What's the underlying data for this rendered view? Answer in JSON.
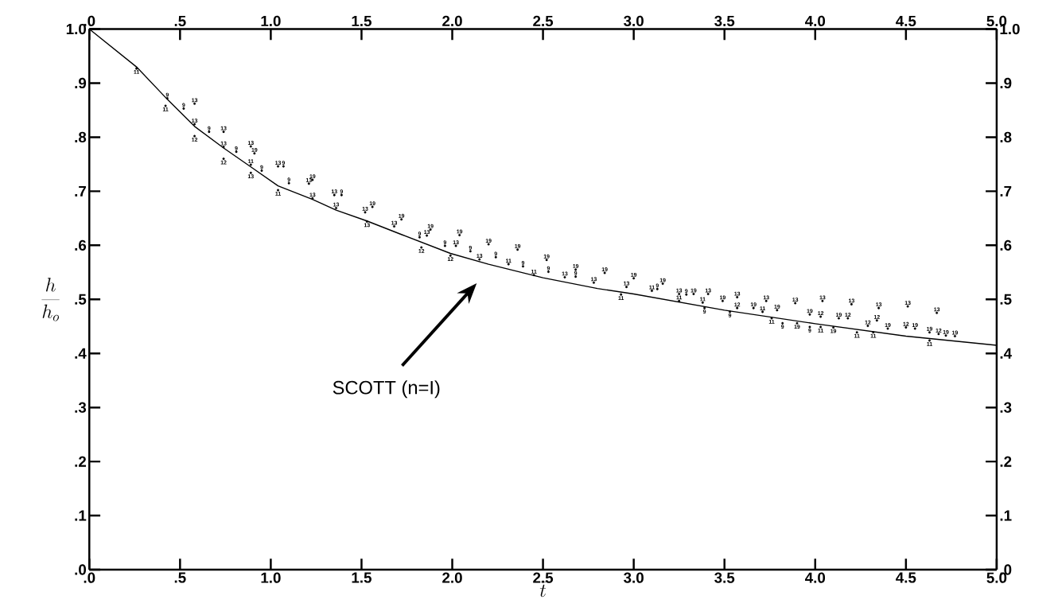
{
  "chart_data": {
    "type": "scatter",
    "xlabel": "\\bar{t}",
    "ylabel": "\\frac{h}{h_o}",
    "xlim": [
      0,
      5
    ],
    "ylim": [
      0,
      1
    ],
    "xticks": [
      {
        "value": 0,
        "label": ".0"
      },
      {
        "value": 0.5,
        "label": ".5"
      },
      {
        "value": 1,
        "label": "1.0"
      },
      {
        "value": 1.5,
        "label": "1.5"
      },
      {
        "value": 2,
        "label": "2.0"
      },
      {
        "value": 2.5,
        "label": "2.5"
      },
      {
        "value": 3,
        "label": "3.0"
      },
      {
        "value": 3.5,
        "label": "3.5"
      },
      {
        "value": 4,
        "label": "4.0"
      },
      {
        "value": 4.5,
        "label": "4.5"
      },
      {
        "value": 5,
        "label": "5.0"
      }
    ],
    "x2lim": [
      0,
      5
    ],
    "x2ticks": [
      {
        "value": 0,
        "label": ".0"
      },
      {
        "value": 0.5,
        "label": ".5"
      },
      {
        "value": 1,
        "label": "1.0"
      },
      {
        "value": 1.5,
        "label": "1.5"
      },
      {
        "value": 2,
        "label": "2.0"
      },
      {
        "value": 2.5,
        "label": "2.5"
      },
      {
        "value": 3,
        "label": "3.0"
      },
      {
        "value": 3.5,
        "label": "3.5"
      },
      {
        "value": 4,
        "label": "4.0"
      },
      {
        "value": 4.5,
        "label": "4.5"
      },
      {
        "value": 5,
        "label": "5.0"
      }
    ],
    "yticks": [
      {
        "value": 0,
        "label": ".0"
      },
      {
        "value": 0.1,
        "label": ".1"
      },
      {
        "value": 0.2,
        "label": ".2"
      },
      {
        "value": 0.3,
        "label": ".3"
      },
      {
        "value": 0.4,
        "label": ".4"
      },
      {
        "value": 0.5,
        "label": ".5"
      },
      {
        "value": 0.6,
        "label": ".6"
      },
      {
        "value": 0.7,
        "label": ".7"
      },
      {
        "value": 0.8,
        "label": ".8"
      },
      {
        "value": 0.9,
        "label": ".9"
      },
      {
        "value": 1,
        "label": "1.0"
      }
    ],
    "y2lim": [
      0,
      1
    ],
    "y2ticks": [
      {
        "value": 0,
        "label": ".0"
      },
      {
        "value": 0.1,
        "label": ".1"
      },
      {
        "value": 0.2,
        "label": ".2"
      },
      {
        "value": 0.3,
        "label": ".3"
      },
      {
        "value": 0.4,
        "label": ".4"
      },
      {
        "value": 0.5,
        "label": ".5"
      },
      {
        "value": 0.6,
        "label": ".6"
      },
      {
        "value": 0.7,
        "label": ".7"
      },
      {
        "value": 0.8,
        "label": ".8"
      },
      {
        "value": 0.9,
        "label": ".9"
      },
      {
        "value": 1,
        "label": "1.0"
      }
    ],
    "annotations": [
      "SCOTT (n=I)"
    ],
    "series": [
      {
        "type": "line",
        "color": "#000000",
        "x": [
          0,
          0.26,
          0.43,
          0.58,
          0.74,
          0.89,
          1.04,
          1.23,
          1.36,
          1.53,
          1.72,
          1.99,
          2.2,
          2.5,
          2.8,
          3.0,
          3.25,
          3.5,
          4.0,
          4.5,
          5.0
        ],
        "values": [
          1.0,
          0.93,
          0.87,
          0.82,
          0.78,
          0.745,
          0.71,
          0.685,
          0.665,
          0.645,
          0.62,
          0.585,
          0.565,
          0.54,
          0.52,
          0.51,
          0.495,
          0.48,
          0.455,
          0.432,
          0.415
        ]
      },
      {
        "name": "9",
        "color": "#000000",
        "x": [
          0.43,
          0.52,
          0.66,
          0.81,
          0.95,
          1.07,
          1.1,
          1.39,
          1.82,
          1.96,
          2.1,
          2.24,
          2.39,
          2.53,
          2.68,
          3.13,
          3.29,
          3.39,
          3.53,
          3.82,
          3.97
        ],
        "values": [
          0.872,
          0.853,
          0.81,
          0.773,
          0.738,
          0.746,
          0.715,
          0.693,
          0.615,
          0.599,
          0.589,
          0.578,
          0.561,
          0.551,
          0.542,
          0.519,
          0.509,
          0.484,
          0.477,
          0.456,
          0.449
        ]
      },
      {
        "name": "11",
        "color": "#000000",
        "x": [
          0.26,
          0.42,
          0.89,
          1.04,
          2.31,
          2.45,
          2.93,
          3.1,
          3.25,
          3.38,
          3.71,
          3.76,
          4.03,
          4.23,
          4.32,
          4.63
        ],
        "values": [
          0.927,
          0.858,
          0.749,
          0.702,
          0.565,
          0.545,
          0.509,
          0.516,
          0.497,
          0.494,
          0.477,
          0.465,
          0.449,
          0.439,
          0.439,
          0.424
        ]
      },
      {
        "name": "12",
        "color": "#000000",
        "x": [
          0.58,
          0.74,
          1.83,
          1.99,
          3.57,
          4.03,
          4.18,
          4.29,
          4.34,
          4.5,
          4.68
        ],
        "values": [
          0.802,
          0.76,
          0.596,
          0.581,
          0.484,
          0.468,
          0.465,
          0.451,
          0.461,
          0.448,
          0.436
        ]
      },
      {
        "name": "13",
        "color": "#000000",
        "x": [
          0.58,
          0.58,
          0.74,
          0.74,
          0.89,
          0.89,
          1.04,
          1.21,
          1.23,
          1.35,
          1.36,
          1.52,
          1.53,
          1.68,
          1.86,
          2.02,
          2.15,
          2.62,
          2.78,
          2.96,
          3.25,
          3.41,
          3.57,
          3.73,
          3.89,
          4.04,
          4.2,
          4.35,
          4.51,
          4.67
        ],
        "values": [
          0.862,
          0.824,
          0.81,
          0.782,
          0.783,
          0.734,
          0.746,
          0.714,
          0.687,
          0.693,
          0.669,
          0.661,
          0.644,
          0.635,
          0.618,
          0.599,
          0.574,
          0.541,
          0.531,
          0.523,
          0.51,
          0.51,
          0.504,
          0.497,
          0.493,
          0.497,
          0.491,
          0.484,
          0.487,
          0.475
        ]
      },
      {
        "name": "19",
        "color": "#000000",
        "x": [
          0.91,
          1.23,
          1.56,
          1.72,
          1.88,
          2.04,
          2.2,
          2.36,
          2.52,
          2.68,
          2.84,
          3.0,
          3.16,
          3.33,
          3.49,
          3.66,
          3.79,
          3.9,
          3.97,
          4.1,
          4.13,
          4.4,
          4.55,
          4.63,
          4.72,
          4.77
        ],
        "values": [
          0.77,
          0.721,
          0.671,
          0.648,
          0.629,
          0.619,
          0.602,
          0.592,
          0.573,
          0.555,
          0.549,
          0.539,
          0.529,
          0.51,
          0.497,
          0.484,
          0.48,
          0.456,
          0.472,
          0.448,
          0.465,
          0.446,
          0.446,
          0.439,
          0.433,
          0.432
        ]
      }
    ]
  }
}
